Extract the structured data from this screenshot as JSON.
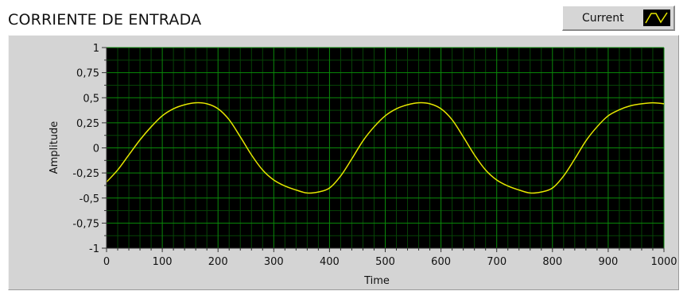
{
  "chart_data": {
    "type": "line",
    "title": "CORRIENTE DE ENTRADA",
    "xlabel": "Time",
    "ylabel": "Amplitude",
    "xlim": [
      0,
      1000
    ],
    "ylim": [
      -1,
      1
    ],
    "x_ticks": [
      "0",
      "100",
      "200",
      "300",
      "400",
      "500",
      "600",
      "700",
      "800",
      "900",
      "1000"
    ],
    "y_ticks": [
      "1",
      "0,75",
      "0,5",
      "0,25",
      "0",
      "-0,25",
      "-0,5",
      "-0,75",
      "-1"
    ],
    "grid": true,
    "legend_position": "top-right",
    "series": [
      {
        "name": "Current",
        "color": "#e6e600",
        "x": [
          0,
          20,
          40,
          60,
          80,
          100,
          120,
          140,
          160,
          180,
          200,
          220,
          240,
          260,
          280,
          300,
          320,
          340,
          360,
          380,
          400,
          420,
          440,
          460,
          480,
          500,
          520,
          540,
          560,
          580,
          600,
          620,
          640,
          660,
          680,
          700,
          720,
          740,
          760,
          780,
          800,
          820,
          840,
          860,
          880,
          900,
          920,
          940,
          960,
          980,
          1000
        ],
        "y": [
          -0.34,
          -0.22,
          -0.07,
          0.08,
          0.21,
          0.32,
          0.39,
          0.43,
          0.45,
          0.44,
          0.39,
          0.28,
          0.11,
          -0.07,
          -0.22,
          -0.32,
          -0.38,
          -0.42,
          -0.45,
          -0.44,
          -0.4,
          -0.28,
          -0.11,
          0.07,
          0.21,
          0.32,
          0.39,
          0.43,
          0.45,
          0.44,
          0.39,
          0.28,
          0.11,
          -0.07,
          -0.22,
          -0.32,
          -0.38,
          -0.42,
          -0.45,
          -0.44,
          -0.4,
          -0.28,
          -0.11,
          0.07,
          0.21,
          0.32,
          0.38,
          0.42,
          0.44,
          0.45,
          0.44
        ]
      }
    ],
    "colors": {
      "plot_background": "#000000",
      "grid_major": "#0a8a0a",
      "grid_minor": "#064406",
      "line": "#e6e600",
      "frame_background": "#d4d4d4"
    }
  }
}
